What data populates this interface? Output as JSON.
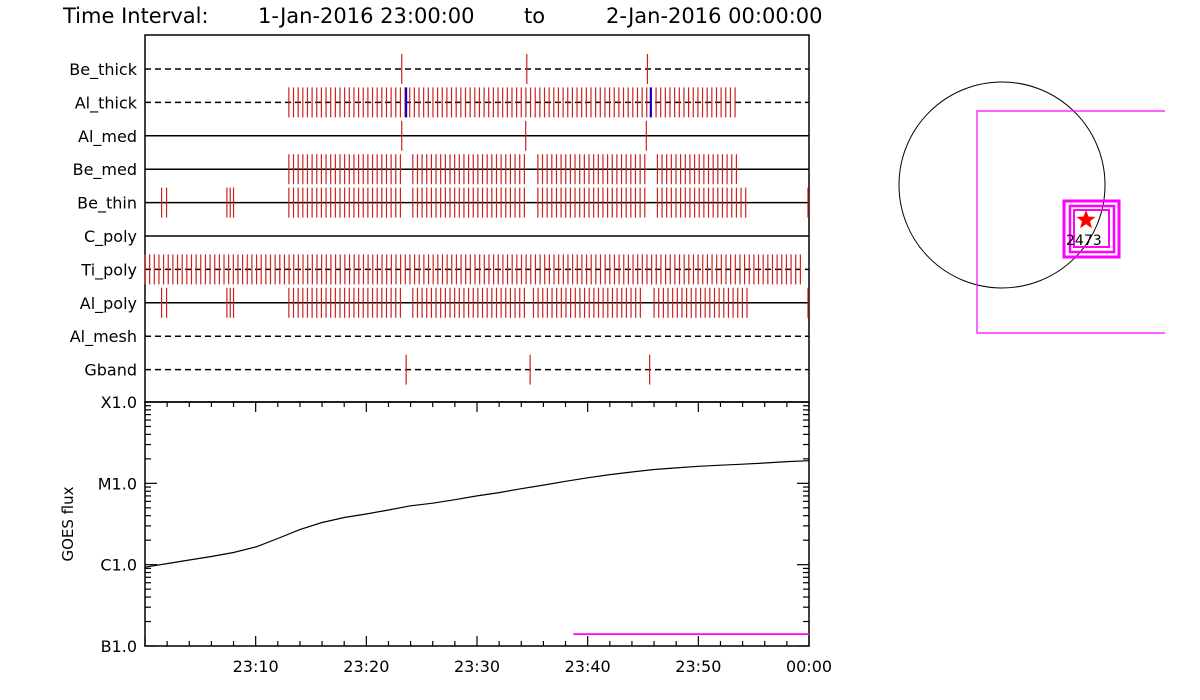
{
  "header": {
    "label": "Time Interval:",
    "start": "1-Jan-2016 23:00:00",
    "to": "to",
    "end": "2-Jan-2016 00:00:00"
  },
  "colors": {
    "tick_red": "#cc2222",
    "tick_blue": "#0000dd",
    "magenta": "#ff00ff",
    "star_red": "#ff0000",
    "ink": "#000000"
  },
  "chart_data": [
    {
      "type": "timeline",
      "x_unit": "minutes after 23:00:00",
      "xlim": [
        0,
        60
      ],
      "rows": [
        {
          "label": "Be_thick",
          "line": "dashed",
          "ticks": [
            23.2,
            34.5,
            45.4
          ],
          "blue_ticks": []
        },
        {
          "label": "Al_thick",
          "line": "dashed",
          "ticks_ranges": [
            [
              13,
              53.5,
              0.42
            ]
          ],
          "blue_ticks": [
            23.6,
            45.7
          ]
        },
        {
          "label": "Al_med",
          "line": "solid",
          "ticks": [
            23.2,
            34.4,
            45.3
          ],
          "blue_ticks": []
        },
        {
          "label": "Be_med",
          "line": "solid",
          "ticks_ranges": [
            [
              13,
              23.3,
              0.42
            ],
            [
              24.2,
              34.6,
              0.42
            ],
            [
              35.5,
              45.4,
              0.42
            ],
            [
              46.3,
              53.5,
              0.42
            ]
          ],
          "blue_ticks": []
        },
        {
          "label": "Be_thin",
          "line": "solid",
          "ticks_ranges": [
            [
              1.5,
              2,
              0.45
            ],
            [
              7.4,
              8,
              0.3
            ],
            [
              13,
              23.4,
              0.42
            ],
            [
              24.2,
              34.6,
              0.42
            ],
            [
              35.5,
              45.4,
              0.42
            ],
            [
              46.3,
              54.6,
              0.42
            ]
          ],
          "ticks": [
            60
          ],
          "blue_ticks": []
        },
        {
          "label": "C_poly",
          "line": "solid",
          "ticks": [],
          "blue_ticks": []
        },
        {
          "label": "Ti_poly",
          "line": "dashed",
          "ticks_ranges": [
            [
              0,
              59.6,
              0.42
            ]
          ],
          "blue_ticks": []
        },
        {
          "label": "Al_poly",
          "line": "solid",
          "ticks_ranges": [
            [
              1.5,
              2,
              0.45
            ],
            [
              7.4,
              8,
              0.3
            ],
            [
              13,
              23.4,
              0.42
            ],
            [
              24.2,
              34.3,
              0.42
            ],
            [
              35.1,
              45.1,
              0.42
            ],
            [
              46,
              54.6,
              0.42
            ]
          ],
          "ticks": [
            60
          ],
          "blue_ticks": []
        },
        {
          "label": "Al_mesh",
          "line": "dashed",
          "ticks": [],
          "blue_ticks": []
        },
        {
          "label": "Gband",
          "line": "dashed",
          "ticks": [
            23.6,
            34.8,
            45.6
          ],
          "blue_ticks": []
        }
      ]
    },
    {
      "type": "line",
      "ylabel": "GOES flux",
      "yscale": "log",
      "ylim": [
        1e-07,
        0.0001
      ],
      "y_ticklabels": [
        "X1.0",
        "M1.0",
        "C1.0",
        "B1.0"
      ],
      "y_tickvalues": [
        0.0001,
        1e-05,
        1e-06,
        1e-07
      ],
      "x_unit": "minutes after 23:00:00",
      "xlim": [
        0,
        60
      ],
      "x_tickvalues": [
        10,
        20,
        30,
        40,
        50,
        60
      ],
      "x_ticklabels": [
        "23:10",
        "23:20",
        "23:30",
        "23:40",
        "23:50",
        "00:00"
      ],
      "series": [
        {
          "x": [
            0,
            2,
            4,
            6,
            8,
            10,
            12,
            14,
            16,
            18,
            20,
            22,
            24,
            26,
            28,
            30,
            32,
            34,
            36,
            38,
            40,
            42,
            44,
            46,
            48,
            50,
            52,
            54,
            56,
            58,
            60
          ],
          "y": [
            9.3e-07,
            1.03e-06,
            1.14e-06,
            1.26e-06,
            1.41e-06,
            1.65e-06,
            2.1e-06,
            2.7e-06,
            3.3e-06,
            3.8e-06,
            4.2e-06,
            4.7e-06,
            5.3e-06,
            5.7e-06,
            6.3e-06,
            7e-06,
            7.7e-06,
            8.6e-06,
            9.5e-06,
            1.06e-05,
            1.17e-05,
            1.28e-05,
            1.38e-05,
            1.48e-05,
            1.55e-05,
            1.62e-05,
            1.67e-05,
            1.72e-05,
            1.78e-05,
            1.85e-05,
            1.9e-05
          ]
        }
      ],
      "hline": {
        "y": 1.4e-07,
        "x_start": 38.7,
        "x_end": 60
      }
    },
    {
      "type": "map",
      "annotation": "2473"
    }
  ]
}
